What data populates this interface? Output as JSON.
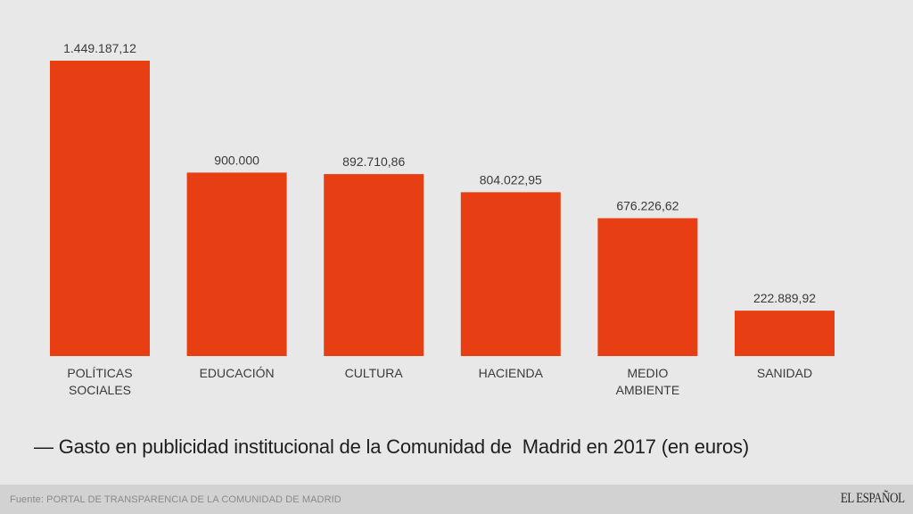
{
  "chart_data": {
    "type": "bar",
    "title": "— Gasto en publicidad institucional de la Comunidad de  Madrid en 2017 (en euros)",
    "xlabel": "",
    "ylabel": "",
    "ylim": [
      0,
      1449187.12
    ],
    "grid": false,
    "legend": "none",
    "categories": [
      [
        "POLÍTICAS",
        "SOCIALES"
      ],
      [
        "EDUCACIÓN"
      ],
      [
        "CULTURA"
      ],
      [
        "HACIENDA"
      ],
      [
        "MEDIO",
        "AMBIENTE"
      ],
      [
        "SANIDAD"
      ]
    ],
    "values": [
      1449187.12,
      900000,
      892710.86,
      804022.95,
      676226.62,
      222889.92
    ],
    "value_labels": [
      "1.449.187,12",
      "900.000",
      "892.710,86",
      "804.022,95",
      "676.226,62",
      "222.889,92"
    ],
    "bar_color": "#e83e14"
  },
  "footer": {
    "source": "Fuente: PORTAL DE TRANSPARENCIA DE LA COMUNIDAD DE MADRID",
    "logo": "EL ESPAÑOL"
  },
  "colors": {
    "background": "#e8e8e8",
    "footer_background": "#d2d2d2",
    "bar": "#e83e14"
  }
}
